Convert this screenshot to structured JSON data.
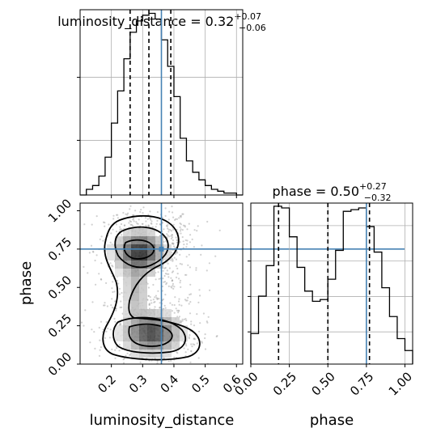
{
  "colors": {
    "truth": "#4682b4",
    "hist": "#000000",
    "grid": "#b0b0b0",
    "points": "#9a9a9a"
  },
  "chart_data": [
    {
      "type": "histogram",
      "panel": "luminosity_distance marginal",
      "title": {
        "main": "luminosity_distance = 0.32",
        "sup": "+0.07",
        "sub": "−0.06"
      },
      "xlim": [
        0.1,
        0.62
      ],
      "bins": [
        0.1,
        0.12,
        0.14,
        0.16,
        0.18,
        0.2,
        0.22,
        0.24,
        0.26,
        0.28,
        0.3,
        0.32,
        0.34,
        0.36,
        0.38,
        0.4,
        0.42,
        0.44,
        0.46,
        0.48,
        0.5,
        0.52,
        0.54,
        0.56,
        0.58,
        0.6,
        0.62
      ],
      "values": [
        0.0,
        0.03,
        0.05,
        0.1,
        0.2,
        0.38,
        0.55,
        0.72,
        0.86,
        0.92,
        0.95,
        0.96,
        0.93,
        0.82,
        0.68,
        0.52,
        0.3,
        0.18,
        0.12,
        0.08,
        0.05,
        0.03,
        0.02,
        0.01,
        0.01,
        0.0
      ],
      "quantiles": [
        0.26,
        0.32,
        0.39
      ],
      "truth": 0.36,
      "grid": true
    },
    {
      "type": "scatter+contour",
      "panel": "phase vs luminosity_distance",
      "xlabel": "luminosity_distance",
      "ylabel": "phase",
      "xlim": [
        0.1,
        0.62
      ],
      "ylim": [
        0.0,
        1.05
      ],
      "xticks": [
        "0.2",
        "0.3",
        "0.4",
        "0.5",
        "0.6"
      ],
      "yticks": [
        "0.00",
        "0.25",
        "0.50",
        "0.75",
        "1.00"
      ],
      "truth": {
        "x": 0.36,
        "y": 0.75
      },
      "modes": [
        {
          "x": 0.31,
          "y": 0.76
        },
        {
          "x": 0.33,
          "y": 0.22
        }
      ]
    },
    {
      "type": "histogram",
      "panel": "phase marginal",
      "title": {
        "main": "phase = 0.50",
        "sup": "+0.27",
        "sub": "−0.32"
      },
      "xlabel": "phase",
      "xlim": [
        0.0,
        1.05
      ],
      "xticks": [
        "0.00",
        "0.25",
        "0.50",
        "0.75",
        "1.00"
      ],
      "bins": [
        0.0,
        0.05,
        0.1,
        0.15,
        0.2,
        0.25,
        0.3,
        0.35,
        0.4,
        0.45,
        0.5,
        0.55,
        0.6,
        0.65,
        0.7,
        0.75,
        0.8,
        0.85,
        0.9,
        0.95,
        1.0,
        1.05
      ],
      "values": [
        0.18,
        0.4,
        0.58,
        0.93,
        0.92,
        0.75,
        0.57,
        0.43,
        0.37,
        0.38,
        0.5,
        0.67,
        0.9,
        0.91,
        0.92,
        0.81,
        0.66,
        0.45,
        0.28,
        0.15,
        0.08
      ],
      "quantiles": [
        0.18,
        0.5,
        0.77
      ],
      "truth": 0.75,
      "grid": true
    }
  ]
}
